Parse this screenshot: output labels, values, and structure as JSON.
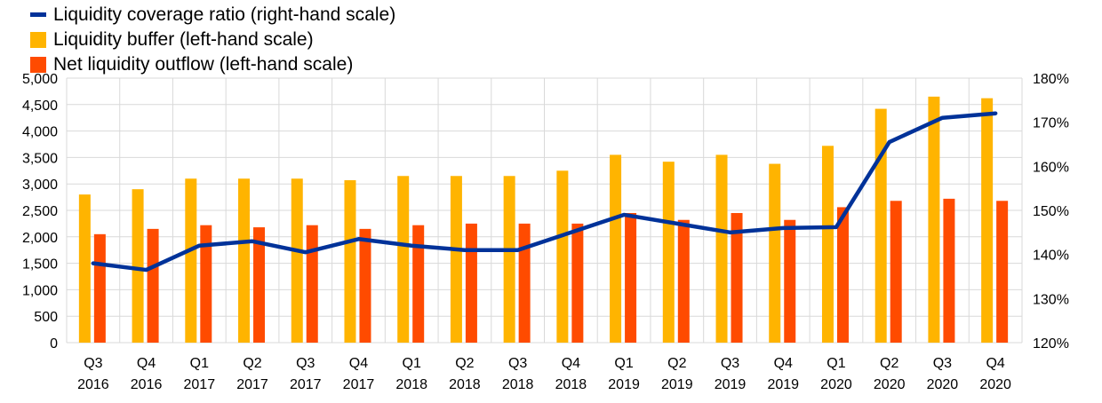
{
  "chart_data": {
    "type": "bar",
    "categories": [
      "Q3 2016",
      "Q4 2016",
      "Q1 2017",
      "Q2 2017",
      "Q3 2017",
      "Q4 2017",
      "Q1 2018",
      "Q2 2018",
      "Q3 2018",
      "Q4 2018",
      "Q1 2019",
      "Q2 2019",
      "Q3 2019",
      "Q4 2019",
      "Q1 2020",
      "Q2 2020",
      "Q3 2020",
      "Q4 2020"
    ],
    "series": [
      {
        "name": "Liquidity buffer (left-hand scale)",
        "type": "bar",
        "axis": "left",
        "color": "#FFB400",
        "values": [
          2800,
          2900,
          3100,
          3100,
          3100,
          3070,
          3150,
          3150,
          3150,
          3250,
          3550,
          3420,
          3550,
          3380,
          3720,
          4420,
          4650,
          4620
        ]
      },
      {
        "name": "Net liquidity outflow (left-hand scale)",
        "type": "bar",
        "axis": "left",
        "color": "#FF4B00",
        "values": [
          2050,
          2150,
          2220,
          2180,
          2220,
          2150,
          2220,
          2250,
          2250,
          2250,
          2450,
          2320,
          2450,
          2320,
          2560,
          2680,
          2720,
          2680
        ]
      },
      {
        "name": "Liquidity coverage ratio (right-hand scale)",
        "type": "line",
        "axis": "right",
        "color": "#003299",
        "values": [
          138,
          136.5,
          142,
          143,
          140.5,
          143.5,
          142,
          141,
          141,
          145,
          149,
          147,
          145,
          146,
          146.2,
          165.5,
          171,
          172
        ]
      }
    ],
    "legend_order": [
      2,
      0,
      1
    ],
    "legend_placement": "top-left",
    "left_axis": {
      "ylim": [
        0,
        5000
      ],
      "ticks": [
        0,
        500,
        1000,
        1500,
        2000,
        2500,
        3000,
        3500,
        4000,
        4500,
        5000
      ]
    },
    "right_axis": {
      "ylim": [
        120,
        180
      ],
      "ticks": [
        120,
        130,
        140,
        150,
        160,
        170,
        180
      ],
      "unit": "%"
    },
    "grid": true
  }
}
